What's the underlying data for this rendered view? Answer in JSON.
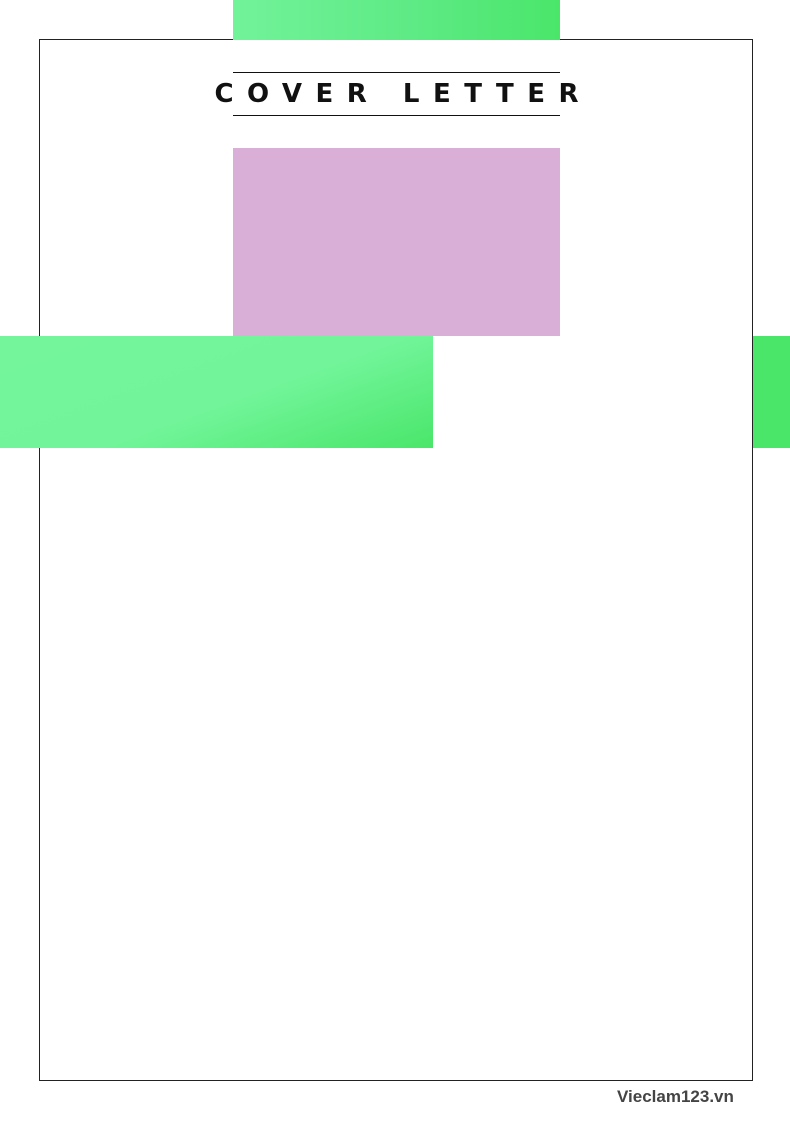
{
  "header": {
    "title": "COVER LETTER"
  },
  "footer": {
    "brand": "Vieclam123.vn"
  },
  "colors": {
    "accent_green": "#4ae66a",
    "accent_green_light": "#72f39a",
    "photo_placeholder": "#d9aed7",
    "frame_border": "#222222",
    "title_text": "#111111",
    "footer_text": "#444444"
  }
}
